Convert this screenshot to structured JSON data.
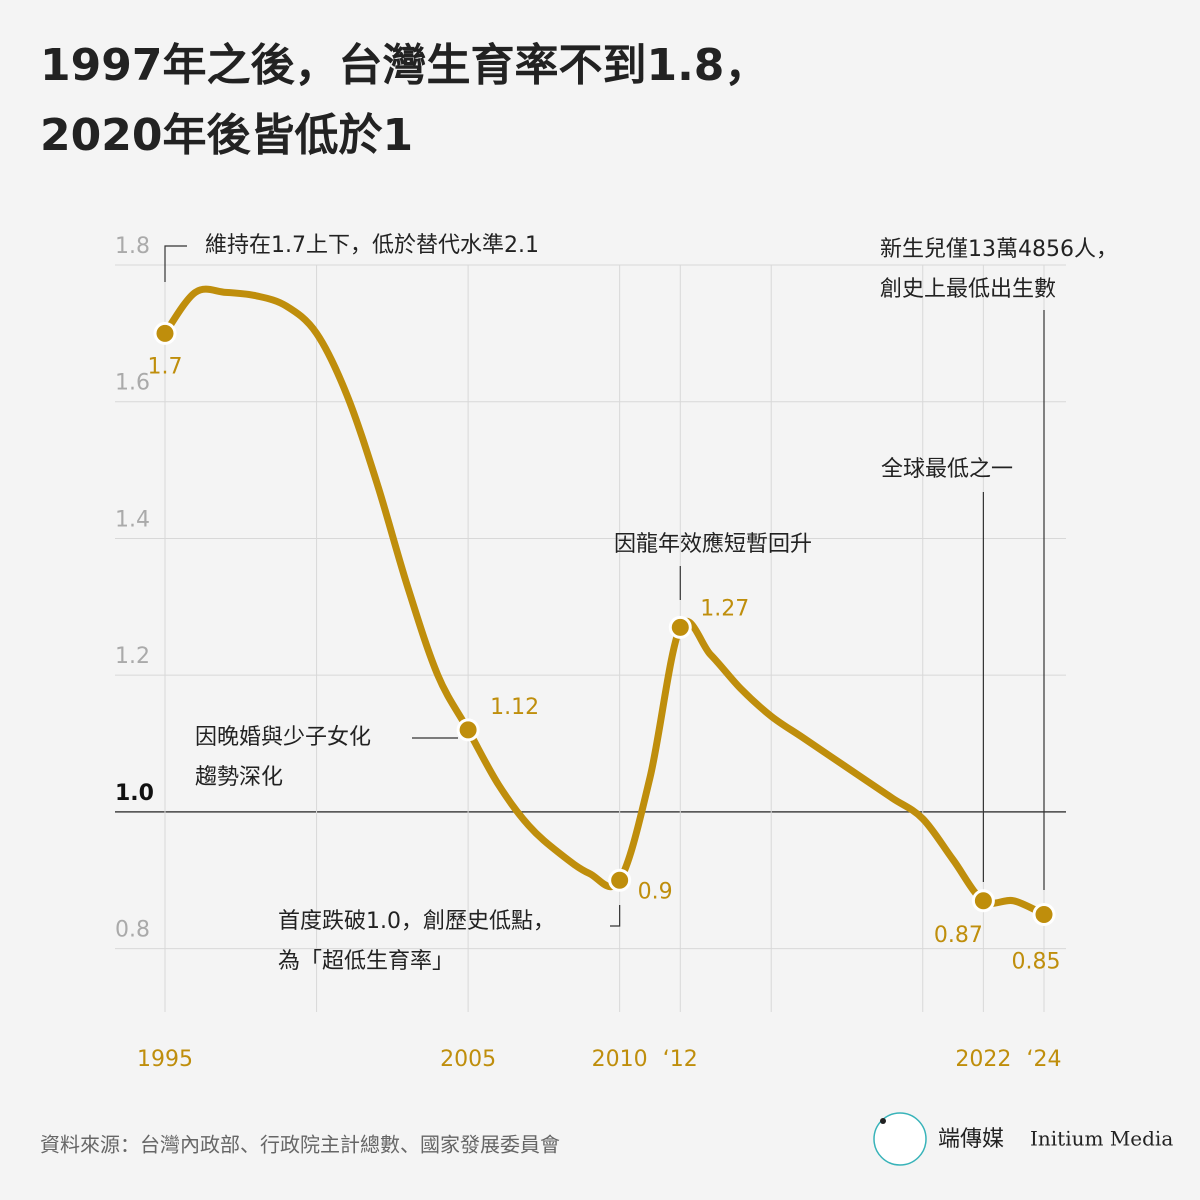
{
  "chart_data": {
    "type": "line",
    "title": [
      "1997年之後，台灣生育率不到1.8，",
      "2020年後皆低於1"
    ],
    "x": [
      1995,
      1996,
      1997,
      1998,
      1999,
      2000,
      2001,
      2002,
      2003,
      2004,
      2005,
      2006,
      2007,
      2008,
      2009,
      2010,
      2011,
      2012,
      2013,
      2014,
      2015,
      2016,
      2017,
      2018,
      2019,
      2020,
      2021,
      2022,
      2023,
      2024
    ],
    "series": [
      {
        "color": "#bf8e0c",
        "values": [
          1.7,
          1.76,
          1.76,
          1.755,
          1.74,
          1.7,
          1.61,
          1.48,
          1.33,
          1.2,
          1.12,
          1.04,
          0.98,
          0.94,
          0.91,
          0.9,
          1.05,
          1.27,
          1.23,
          1.18,
          1.14,
          1.11,
          1.08,
          1.05,
          1.02,
          0.99,
          0.93,
          0.87,
          0.87,
          0.85
        ]
      }
    ],
    "highlights": {
      "x": [
        1995,
        2005,
        2010,
        2012,
        2022,
        2024
      ],
      "values": [
        1.7,
        1.12,
        0.9,
        1.27,
        0.87,
        0.85
      ]
    },
    "xlim": [
      1995,
      2024
    ],
    "xticks": [
      1995,
      2005,
      2010,
      {
        "value": 2012,
        "label": "‘12"
      },
      2022,
      {
        "value": 2024,
        "label": "‘24"
      }
    ],
    "xgrid": [
      2000,
      2015,
      2020
    ],
    "ylim": [
      0.7,
      1.8
    ],
    "yticks": [
      0.8,
      {
        "value": 1,
        "label": "1.0"
      },
      1.2,
      1.4,
      1.6,
      1.8
    ],
    "grid": true,
    "annotations": [
      [
        "維持在1.7上下，低於替代水準2.1"
      ],
      [
        "因晚婚與少子女化",
        "趨勢深化"
      ],
      [
        "首度跌破1.0，創歷史低點，",
        "為「超低生育率」"
      ],
      [
        "因龍年效應短暫回升"
      ],
      [
        "全球最低之一"
      ],
      [
        "新生兒僅13萬4856人，",
        "創史上最低出生數"
      ]
    ],
    "source": "資料來源：台灣內政部、行政院主計總數、國家發展委員會",
    "brand": [
      "端傳媒",
      "Initium Media"
    ]
  }
}
